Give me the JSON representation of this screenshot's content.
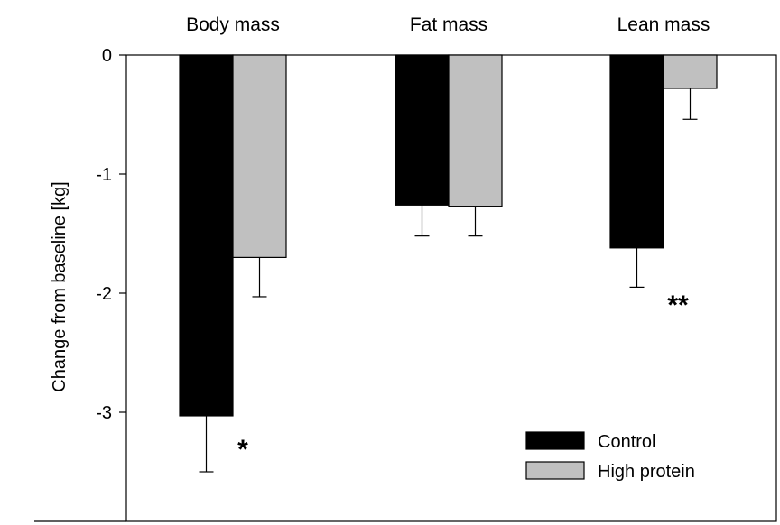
{
  "chart_data": {
    "type": "bar",
    "categories": [
      "Body mass",
      "Fat mass",
      "Lean mass"
    ],
    "ylabel": "Change from baseline [kg]",
    "ylim": [
      -3.9,
      0
    ],
    "yticks": [
      "0",
      "-1",
      "-2",
      "-3"
    ],
    "category_labels_position": "top",
    "series": [
      {
        "name": "Control",
        "color": "#000000",
        "values": [
          -3.03,
          -1.26,
          -1.62
        ],
        "errors": [
          0.47,
          0.26,
          0.33
        ]
      },
      {
        "name": "High protein",
        "color": "#c0c0c0",
        "values": [
          -1.7,
          -1.27,
          -0.28
        ],
        "errors": [
          0.33,
          0.25,
          0.26
        ]
      }
    ],
    "annotations": [
      {
        "text": "*",
        "category": "Body mass"
      },
      {
        "text": "**",
        "category": "Lean mass"
      }
    ],
    "legend": {
      "placement": "bottom-right",
      "entries": [
        "Control",
        "High protein"
      ]
    },
    "grid": false
  }
}
